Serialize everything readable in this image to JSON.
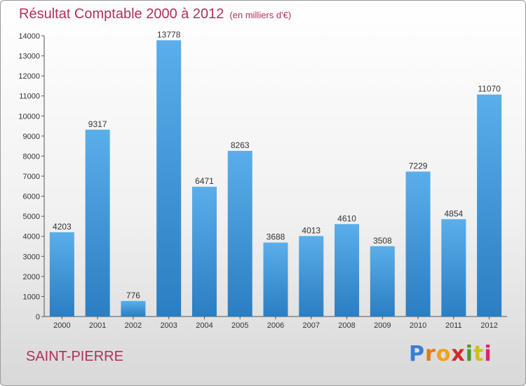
{
  "header": {
    "title": "Résultat Comptable 2000 à 2012",
    "subtitle": "(en milliers d'€)"
  },
  "footer": {
    "location": "SAINT-PIERRE",
    "logo": [
      "P",
      "r",
      "o",
      "x",
      "i",
      "t",
      "i"
    ],
    "logo_colors": [
      "#3a7fd0",
      "#e07a1a",
      "#f0a21a",
      "#d02a2a",
      "#4a9a2a",
      "#d0bf1a",
      "#d02a70"
    ]
  },
  "colors": {
    "bar_top": "#5aaeea",
    "bar_bottom": "#2a7ec2",
    "title": "#b0305a",
    "axis": "#555555"
  },
  "chart_data": {
    "type": "bar",
    "title": "Résultat Comptable 2000 à 2012",
    "subtitle": "(en milliers d'€)",
    "categories": [
      "2000",
      "2001",
      "2002",
      "2003",
      "2004",
      "2005",
      "2006",
      "2007",
      "2008",
      "2009",
      "2010",
      "2011",
      "2012"
    ],
    "values": [
      4203,
      9317,
      776,
      13778,
      6471,
      8263,
      3688,
      4013,
      4610,
      3508,
      7229,
      4854,
      11070
    ],
    "ylim": [
      0,
      14000
    ],
    "yticks": [
      0,
      1000,
      2000,
      3000,
      4000,
      5000,
      6000,
      7000,
      8000,
      9000,
      10000,
      11000,
      12000,
      13000,
      14000
    ],
    "xlabel": "",
    "ylabel": "",
    "grid": false
  }
}
